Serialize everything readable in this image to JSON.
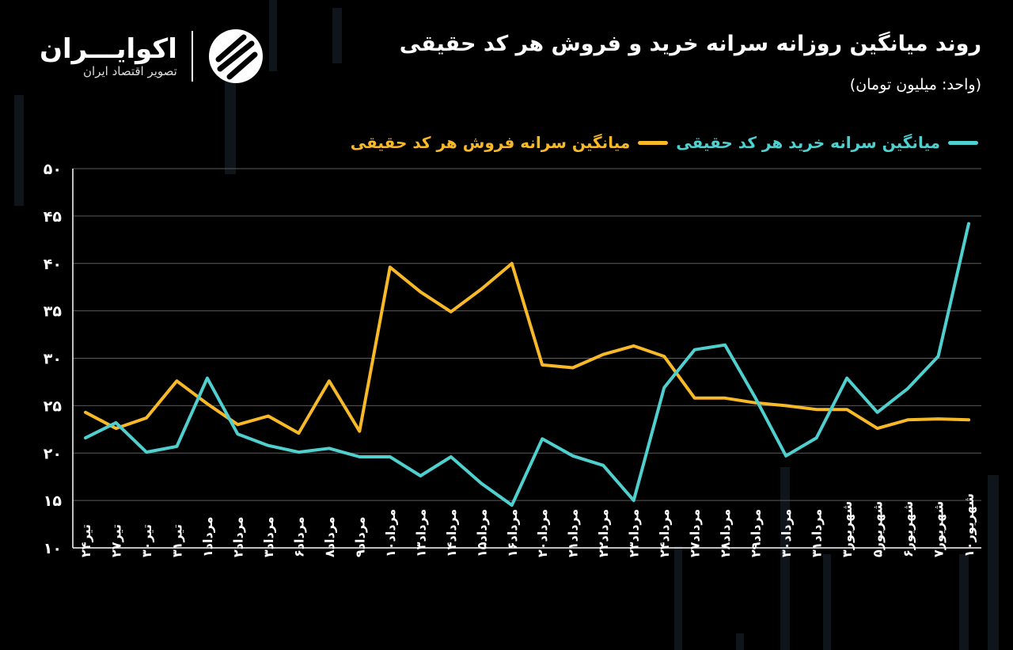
{
  "header": {
    "title": "روند میانگین روزانه سرانه خرید و فروش هر کد حقیقی",
    "unit": "(واحد: میلیون تومان)"
  },
  "logo": {
    "name": "اکوایـــران",
    "tagline": "تصویر اقتصاد ایران"
  },
  "colors": {
    "buy": "#4fd0cf",
    "sell": "#f7b928",
    "background": "#000000",
    "grid": "#5a5a5a"
  },
  "chart_data": {
    "type": "line",
    "title": "روند میانگین روزانه سرانه خرید و فروش هر کد حقیقی",
    "legend_placement": "top-right",
    "grid": true,
    "ylim": [
      10,
      50
    ],
    "yticks": [
      "۱۰",
      "۱۵",
      "۲۰",
      "۲۵",
      "۳۰",
      "۳۵",
      "۴۰",
      "۴۵",
      "۵۰"
    ],
    "ytick_values": [
      10,
      15,
      20,
      25,
      30,
      35,
      40,
      45,
      50
    ],
    "categories": [
      "تیر۲۴",
      "تیر۲۷",
      "تیر۳۰",
      "تیر۳۱",
      "مرداد۱",
      "مرداد۲",
      "مرداد۳",
      "مرداد۶",
      "مرداد۸",
      "مرداد۹",
      "مرداد۱۰",
      "مرداد۱۳",
      "مرداد۱۴",
      "مرداد۱۵",
      "مرداد۱۶",
      "مرداد۲۰",
      "مرداد۲۱",
      "مرداد۲۲",
      "مرداد۲۳",
      "مرداد۲۴",
      "مرداد۲۷",
      "مرداد۲۸",
      "مرداد۲۹",
      "مرداد۳۰",
      "مرداد۳۱",
      "شهریور۳",
      "شهریور۵",
      "شهریور۶",
      "شهریور۷",
      "شهریور۱۰"
    ],
    "series": [
      {
        "name": "میانگین سرانه خرید هر کد حقیقی",
        "color": "#4fd0cf",
        "values": [
          21.6,
          23.2,
          20.1,
          20.7,
          27.9,
          22.0,
          20.8,
          20.1,
          20.5,
          19.6,
          19.6,
          17.6,
          19.6,
          16.8,
          14.5,
          21.5,
          19.7,
          18.7,
          15.0,
          26.9,
          30.9,
          31.4,
          25.8,
          19.7,
          21.6,
          27.9,
          24.3,
          26.8,
          30.2,
          44.2
        ]
      },
      {
        "name": "میانگین سرانه فروش هر کد حقیقی",
        "color": "#f7b928",
        "values": [
          24.3,
          22.6,
          23.7,
          27.6,
          25.2,
          23.0,
          23.9,
          22.1,
          27.6,
          22.3,
          39.6,
          37.0,
          34.9,
          37.3,
          40.0,
          29.3,
          29.0,
          30.4,
          31.3,
          30.2,
          25.8,
          25.8,
          25.3,
          25.0,
          24.6,
          24.6,
          22.6,
          23.5,
          23.6,
          23.5
        ]
      }
    ]
  }
}
